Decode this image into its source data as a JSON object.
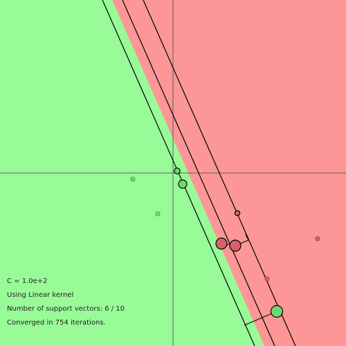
{
  "colors": {
    "class_pos_region": "#98fb98",
    "class_neg_region": "#fd9696",
    "class_pos_point": "#6fd76f",
    "class_neg_point": "#d9606a",
    "axis": "#606060",
    "line": "#000000"
  },
  "info": {
    "c_value": "C = 1.0e+2",
    "kernel": "Using Linear kernel",
    "support_vectors": "Number of support vectors: 6 / 10",
    "iterations": "Converged in 754 iterations."
  },
  "points": [
    {
      "label": "positive",
      "support_vector": false,
      "weight": "small"
    },
    {
      "label": "positive",
      "support_vector": false,
      "weight": "small"
    },
    {
      "label": "positive",
      "support_vector": true,
      "weight": "small"
    },
    {
      "label": "positive",
      "support_vector": true,
      "weight": "medium"
    },
    {
      "label": "positive",
      "support_vector": true,
      "weight": "large"
    },
    {
      "label": "negative",
      "support_vector": true,
      "weight": "small"
    },
    {
      "label": "negative",
      "support_vector": true,
      "weight": "large"
    },
    {
      "label": "negative",
      "support_vector": true,
      "weight": "large"
    },
    {
      "label": "negative",
      "support_vector": false,
      "weight": "small"
    },
    {
      "label": "negative",
      "support_vector": false,
      "weight": "small"
    }
  ]
}
